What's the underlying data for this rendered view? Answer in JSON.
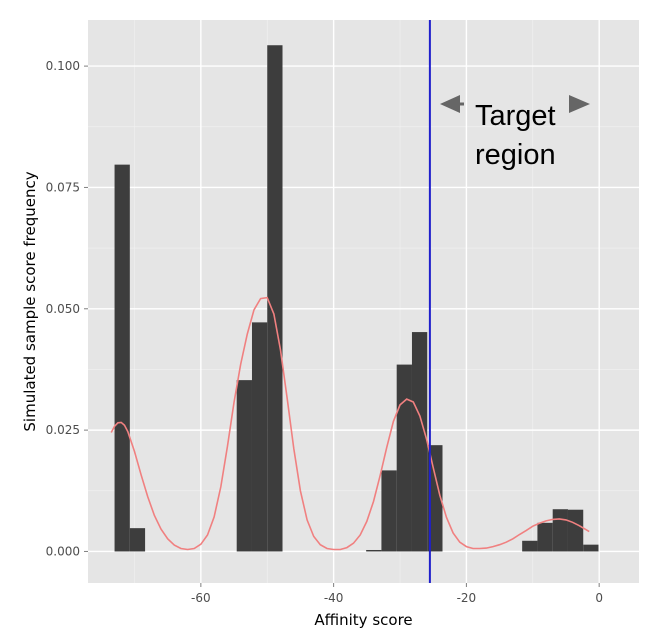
{
  "chart_data": {
    "type": "bar",
    "xlabel": "Affinity score",
    "ylabel": "Simulated sample score frequency",
    "xlim": [
      -77,
      6
    ],
    "ylim": [
      -0.0065,
      0.1095
    ],
    "x_ticks": [
      -60,
      -40,
      -20,
      0
    ],
    "x_tick_labels": [
      "-60",
      "-40",
      "-20",
      "0"
    ],
    "y_ticks": [
      0,
      0.025,
      0.05,
      0.075,
      0.1
    ],
    "y_tick_labels": [
      "0.000",
      "0.025",
      "0.050",
      "0.075",
      "0.100"
    ],
    "grid": true,
    "colors": {
      "panel": "#e5e5e5",
      "grid_major": "#ffffff",
      "bar": "#3d3d3d",
      "density": "#f08080",
      "threshold": "#1f1fcc",
      "arrow": "#666666"
    },
    "histogram": {
      "bin_width": 2.3,
      "bins": [
        {
          "x_start": -73.0,
          "value": 0.0797
        },
        {
          "x_start": -70.7,
          "value": 0.0048
        },
        {
          "x_start": -54.6,
          "value": 0.0353
        },
        {
          "x_start": -52.3,
          "value": 0.0472
        },
        {
          "x_start": -50.0,
          "value": 0.1043
        },
        {
          "x_start": -35.1,
          "value": 0.0003
        },
        {
          "x_start": -32.8,
          "value": 0.0167
        },
        {
          "x_start": -30.5,
          "value": 0.0385
        },
        {
          "x_start": -28.2,
          "value": 0.0452
        },
        {
          "x_start": -25.9,
          "value": 0.0219
        },
        {
          "x_start": -11.6,
          "value": 0.0022
        },
        {
          "x_start": -9.3,
          "value": 0.0059
        },
        {
          "x_start": -7.0,
          "value": 0.0087
        },
        {
          "x_start": -4.7,
          "value": 0.0086
        },
        {
          "x_start": -2.4,
          "value": 0.0014
        }
      ]
    },
    "density_curve": {
      "x": [
        -73.5,
        -73,
        -72.5,
        -72,
        -71.5,
        -71,
        -70,
        -69,
        -68,
        -67,
        -66,
        -65,
        -64,
        -63,
        -62,
        -61,
        -60,
        -59,
        -58,
        -57,
        -56,
        -55,
        -54,
        -53,
        -52,
        -51,
        -50,
        -49,
        -48,
        -47,
        -46,
        -45,
        -44,
        -43,
        -42,
        -41,
        -40,
        -39,
        -38,
        -37,
        -36,
        -35,
        -34,
        -33,
        -32,
        -31,
        -30,
        -29,
        -28,
        -27,
        -26,
        -25,
        -24,
        -23,
        -22,
        -21,
        -20,
        -19,
        -18,
        -17,
        -16,
        -15,
        -14,
        -13,
        -12,
        -11,
        -10,
        -9,
        -8,
        -7,
        -6,
        -5,
        -4,
        -3,
        -2,
        -1.5
      ],
      "y": [
        0.0245,
        0.0258,
        0.0265,
        0.0266,
        0.026,
        0.0247,
        0.0206,
        0.0158,
        0.0113,
        0.0074,
        0.0046,
        0.0026,
        0.0013,
        0.0006,
        0.0004,
        0.0006,
        0.0015,
        0.0034,
        0.0071,
        0.0133,
        0.0216,
        0.0307,
        0.0386,
        0.0448,
        0.0498,
        0.0521,
        0.0523,
        0.0489,
        0.0415,
        0.0315,
        0.0212,
        0.0125,
        0.0065,
        0.0031,
        0.0014,
        0.0006,
        0.0004,
        0.0004,
        0.0008,
        0.0017,
        0.0034,
        0.0062,
        0.0103,
        0.0156,
        0.0214,
        0.0268,
        0.0302,
        0.0314,
        0.0308,
        0.0279,
        0.0231,
        0.0173,
        0.0116,
        0.007,
        0.0038,
        0.0019,
        0.001,
        0.0006,
        0.0006,
        0.0007,
        0.001,
        0.0014,
        0.0019,
        0.0026,
        0.0035,
        0.0043,
        0.0052,
        0.0058,
        0.0063,
        0.0066,
        0.0067,
        0.0065,
        0.006,
        0.0053,
        0.0045,
        0.0041
      ]
    },
    "threshold_x": -25.5,
    "annotations": {
      "target_line1": "Target",
      "target_line2": "region"
    }
  }
}
